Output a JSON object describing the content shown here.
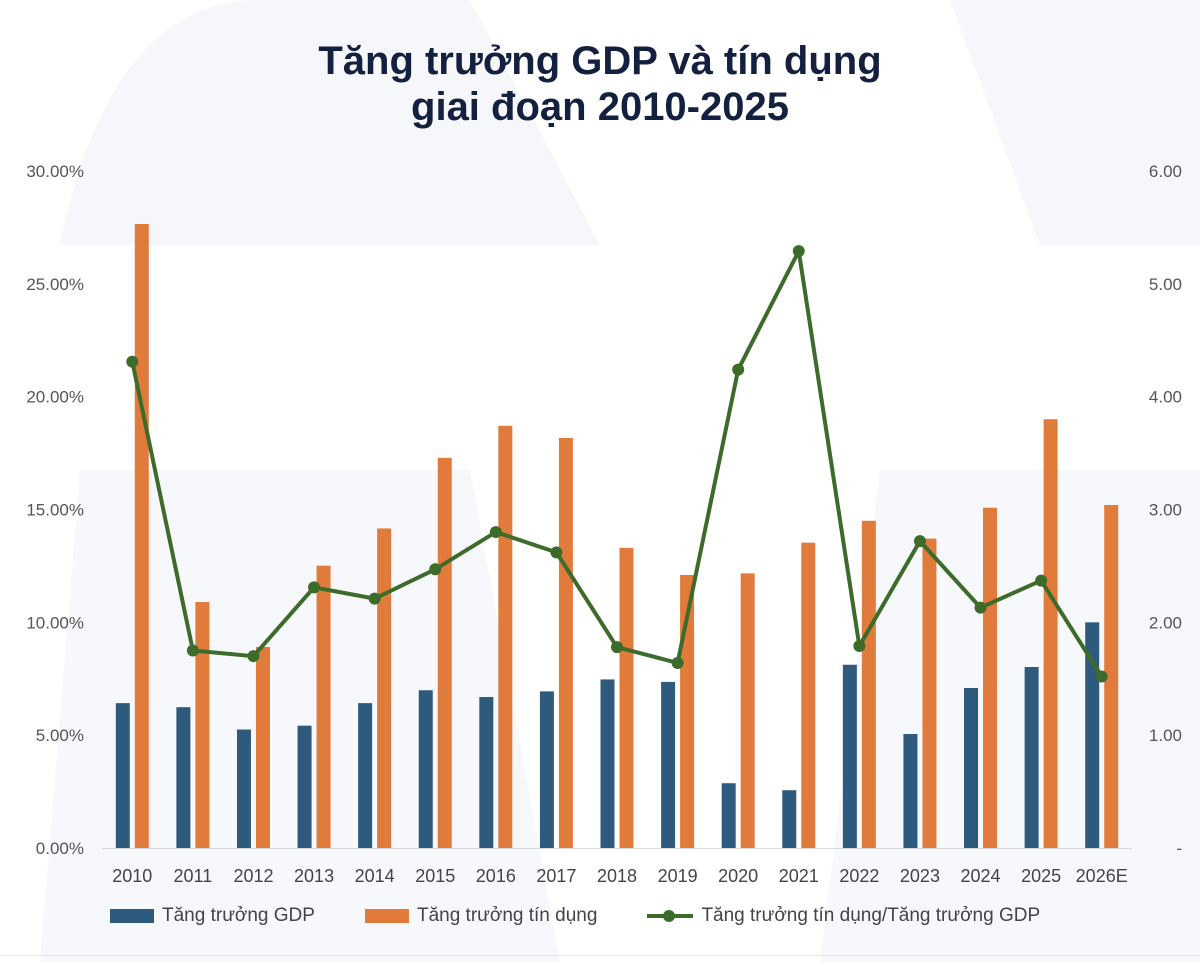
{
  "chart_data": {
    "type": "bar",
    "title_line1": "Tăng trưởng GDP và tín dụng",
    "title_line2": "giai đoạn 2010-2025",
    "categories": [
      "2010",
      "2011",
      "2012",
      "2013",
      "2014",
      "2015",
      "2016",
      "2017",
      "2018",
      "2019",
      "2020",
      "2021",
      "2022",
      "2023",
      "2024",
      "2025",
      "2026E"
    ],
    "left_axis": {
      "ylim": [
        0,
        30
      ],
      "ticks": [
        0,
        5,
        10,
        15,
        20,
        25,
        30
      ],
      "tick_labels": [
        "0.00%",
        "5.00%",
        "10.00%",
        "15.00%",
        "20.00%",
        "25.00%",
        "30.00%"
      ]
    },
    "right_axis": {
      "ylim": [
        0,
        6
      ],
      "ticks": [
        0,
        1,
        2,
        3,
        4,
        5,
        6
      ],
      "tick_labels": [
        "-",
        "1.00",
        "2.00",
        "3.00",
        "4.00",
        "5.00",
        "6.00"
      ]
    },
    "series": [
      {
        "name": "Tăng trưởng GDP",
        "kind": "bar",
        "axis": "left",
        "color": "#2e5a7d",
        "values": [
          6.42,
          6.24,
          5.25,
          5.42,
          6.42,
          6.99,
          6.69,
          6.94,
          7.47,
          7.36,
          2.87,
          2.56,
          8.12,
          5.05,
          7.09,
          8.02,
          10.0
        ]
      },
      {
        "name": "Tăng trưởng tín dụng",
        "kind": "bar",
        "axis": "left",
        "color": "#e07b3c",
        "values": [
          27.65,
          10.9,
          8.91,
          12.51,
          14.16,
          17.29,
          18.71,
          18.17,
          13.3,
          12.1,
          12.17,
          13.53,
          14.5,
          13.71,
          15.08,
          19.0,
          15.2
        ]
      },
      {
        "name": "Tăng trưởng tín dụng/Tăng trưởng GDP",
        "kind": "line",
        "axis": "right",
        "color": "#3d6b2a",
        "values": [
          4.31,
          1.75,
          1.7,
          2.31,
          2.21,
          2.47,
          2.8,
          2.62,
          1.78,
          1.64,
          4.24,
          5.29,
          1.79,
          2.72,
          2.13,
          2.37,
          1.52
        ]
      }
    ],
    "grid": false,
    "legend_position": "bottom"
  }
}
